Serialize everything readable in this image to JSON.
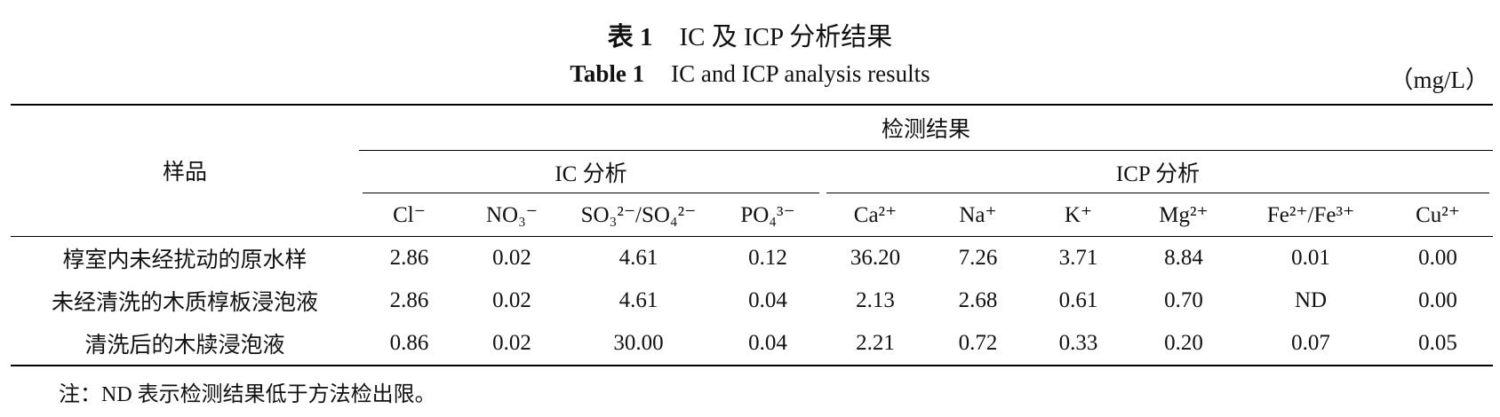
{
  "caption": {
    "zh_label": "表 1",
    "zh_title": "IC 及 ICP 分析结果",
    "en_label": "Table 1",
    "en_title": "IC and ICP analysis results",
    "unit": "（mg/L）"
  },
  "table": {
    "sample_header": "样品",
    "group_header": "检测结果",
    "ic_header": "IC 分析",
    "icp_header": "ICP 分析",
    "ic_columns": [
      "Cl⁻",
      "NO₃⁻",
      "SO₃²⁻/SO₄²⁻",
      "PO₄³⁻"
    ],
    "icp_columns": [
      "Ca²⁺",
      "Na⁺",
      "K⁺",
      "Mg²⁺",
      "Fe²⁺/Fe³⁺",
      "Cu²⁺"
    ],
    "rows": [
      {
        "sample": "椁室内未经扰动的原水样",
        "values": [
          "2.86",
          "0.02",
          "4.61",
          "0.12",
          "36.20",
          "7.26",
          "3.71",
          "8.84",
          "0.01",
          "0.00"
        ]
      },
      {
        "sample": "未经清洗的木质椁板浸泡液",
        "values": [
          "2.86",
          "0.02",
          "4.61",
          "0.04",
          "2.13",
          "2.68",
          "0.61",
          "0.70",
          "ND",
          "0.00"
        ]
      },
      {
        "sample": "清洗后的木牍浸泡液",
        "values": [
          "0.86",
          "0.02",
          "30.00",
          "0.04",
          "2.21",
          "0.72",
          "0.33",
          "0.20",
          "0.07",
          "0.05"
        ]
      }
    ]
  },
  "note": "注：ND 表示检测结果低于方法检出限。"
}
